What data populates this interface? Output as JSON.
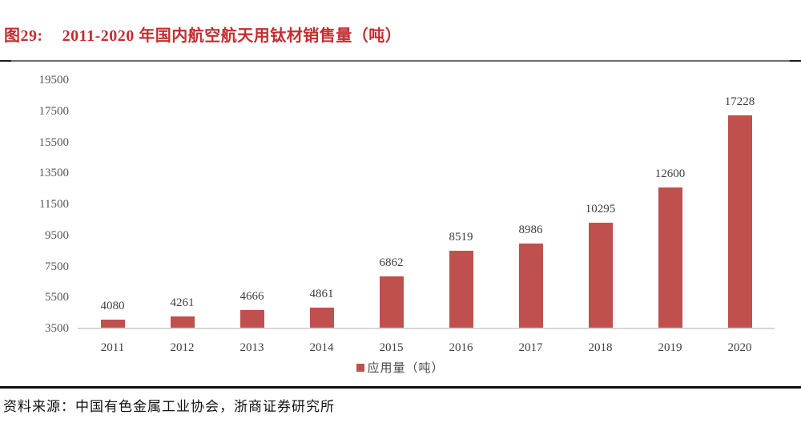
{
  "header": {
    "figure_label": "图29:",
    "title": "2011-2020 年国内航空航天用钛材销售量（吨）"
  },
  "chart_data": {
    "type": "bar",
    "title": "2011-2020 年国内航空航天用钛材销售量（吨）",
    "categories": [
      "2011",
      "2012",
      "2013",
      "2014",
      "2015",
      "2016",
      "2017",
      "2018",
      "2019",
      "2020"
    ],
    "values": [
      4080,
      4261,
      4666,
      4861,
      6862,
      8519,
      8986,
      10295,
      12600,
      17228
    ],
    "legend": "应用量（吨）",
    "xlabel": "",
    "ylabel": "",
    "ylim": [
      3500,
      19500
    ],
    "yticks": [
      3500,
      5500,
      7500,
      9500,
      11500,
      13500,
      15500,
      17500,
      19500
    ],
    "grid": false,
    "legend_position": "bottom",
    "data_labels": true
  },
  "footer": {
    "source": "资料来源：中国有色金属工业协会，浙商证券研究所"
  },
  "colors": {
    "title_red": "#c22e31",
    "bar": "#c0504d",
    "axis_text": "#595959",
    "label_text": "#3f3f3f",
    "baseline": "#d6d6d6"
  }
}
